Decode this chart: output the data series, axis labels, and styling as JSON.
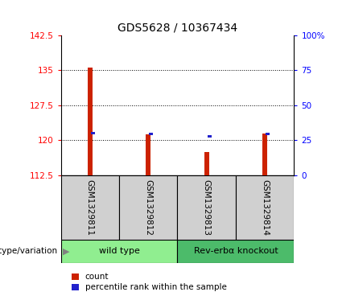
{
  "title": "GDS5628 / 10367434",
  "samples": [
    "GSM1329811",
    "GSM1329812",
    "GSM1329813",
    "GSM1329814"
  ],
  "red_values": [
    135.5,
    121.2,
    117.5,
    121.5
  ],
  "blue_values": [
    121.5,
    121.3,
    120.8,
    121.3
  ],
  "ylim_left": [
    112.5,
    142.5
  ],
  "ylim_right": [
    0,
    100
  ],
  "yticks_left": [
    112.5,
    120.0,
    127.5,
    135.0,
    142.5
  ],
  "yticks_right": [
    0,
    25,
    50,
    75,
    100
  ],
  "ytick_labels_left": [
    "112.5",
    "120",
    "127.5",
    "135",
    "142.5"
  ],
  "ytick_labels_right": [
    "0",
    "25",
    "50",
    "75",
    "100%"
  ],
  "hlines": [
    120.0,
    127.5,
    135.0
  ],
  "groups": [
    {
      "label": "wild type",
      "cols": [
        0,
        1
      ],
      "color": "#90EE90"
    },
    {
      "label": "Rev-erbα knockout",
      "cols": [
        2,
        3
      ],
      "color": "#4CBB6A"
    }
  ],
  "group_label_prefix": "genotype/variation",
  "legend_items": [
    {
      "color": "#CC2200",
      "label": "count"
    },
    {
      "color": "#2222CC",
      "label": "percentile rank within the sample"
    }
  ],
  "red_color": "#CC2200",
  "blue_color": "#2222CC",
  "baseline": 112.5,
  "title_fontsize": 10,
  "tick_fontsize": 7.5,
  "sample_fontsize": 7.5,
  "group_fontsize": 8,
  "legend_fontsize": 7.5
}
